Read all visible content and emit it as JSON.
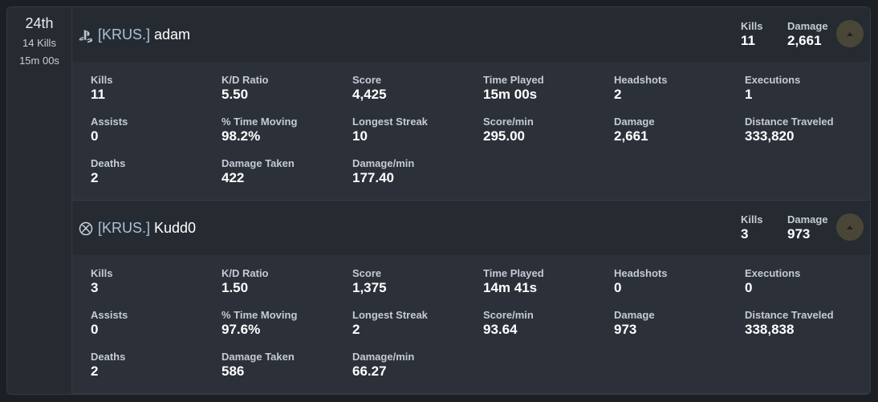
{
  "placement": {
    "rank": "24th",
    "kills": "14 Kills",
    "time": "15m 00s"
  },
  "players": [
    {
      "platform": "playstation-icon",
      "clan": "[KRUS.]",
      "name": "adam",
      "header": {
        "kills_label": "Kills",
        "kills": "11",
        "damage_label": "Damage",
        "damage": "2,661"
      },
      "stats": [
        {
          "label": "Kills",
          "value": "11"
        },
        {
          "label": "K/D Ratio",
          "value": "5.50"
        },
        {
          "label": "Score",
          "value": "4,425"
        },
        {
          "label": "Time Played",
          "value": "15m 00s"
        },
        {
          "label": "Headshots",
          "value": "2"
        },
        {
          "label": "Executions",
          "value": "1"
        },
        {
          "label": "Assists",
          "value": "0"
        },
        {
          "label": "% Time Moving",
          "value": "98.2%"
        },
        {
          "label": "Longest Streak",
          "value": "10"
        },
        {
          "label": "Score/min",
          "value": "295.00"
        },
        {
          "label": "Damage",
          "value": "2,661"
        },
        {
          "label": "Distance Traveled",
          "value": "333,820"
        },
        {
          "label": "Deaths",
          "value": "2"
        },
        {
          "label": "Damage Taken",
          "value": "422"
        },
        {
          "label": "Damage/min",
          "value": "177.40"
        }
      ]
    },
    {
      "platform": "xbox-icon",
      "clan": "[KRUS.]",
      "name": "Kudd0",
      "header": {
        "kills_label": "Kills",
        "kills": "3",
        "damage_label": "Damage",
        "damage": "973"
      },
      "stats": [
        {
          "label": "Kills",
          "value": "3"
        },
        {
          "label": "K/D Ratio",
          "value": "1.50"
        },
        {
          "label": "Score",
          "value": "1,375"
        },
        {
          "label": "Time Played",
          "value": "14m 41s"
        },
        {
          "label": "Headshots",
          "value": "0"
        },
        {
          "label": "Executions",
          "value": "0"
        },
        {
          "label": "Assists",
          "value": "0"
        },
        {
          "label": "% Time Moving",
          "value": "97.6%"
        },
        {
          "label": "Longest Streak",
          "value": "2"
        },
        {
          "label": "Score/min",
          "value": "93.64"
        },
        {
          "label": "Damage",
          "value": "973"
        },
        {
          "label": "Distance Traveled",
          "value": "338,838"
        },
        {
          "label": "Deaths",
          "value": "2"
        },
        {
          "label": "Damage Taken",
          "value": "586"
        },
        {
          "label": "Damage/min",
          "value": "66.27"
        }
      ]
    }
  ]
}
